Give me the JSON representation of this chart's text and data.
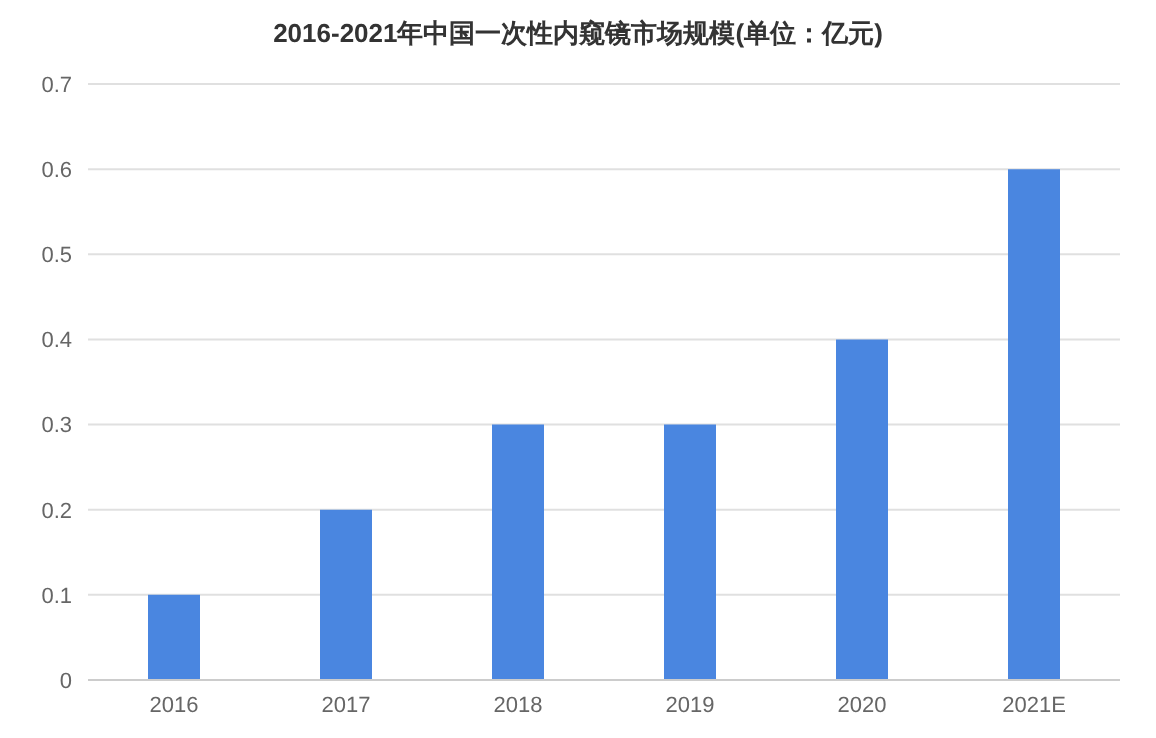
{
  "chart_data": {
    "type": "bar",
    "title": "2016-2021年中国一次性内窥镜市场规模(单位：亿元)",
    "categories": [
      "2016",
      "2017",
      "2018",
      "2019",
      "2020",
      "2021E"
    ],
    "values": [
      0.1,
      0.2,
      0.3,
      0.3,
      0.4,
      0.6
    ],
    "color": "#4a86e0",
    "ylim": [
      0,
      0.7
    ],
    "yticks": [
      0,
      0.1,
      0.2,
      0.3,
      0.4,
      0.5,
      0.6,
      0.7
    ],
    "grid": "y"
  }
}
